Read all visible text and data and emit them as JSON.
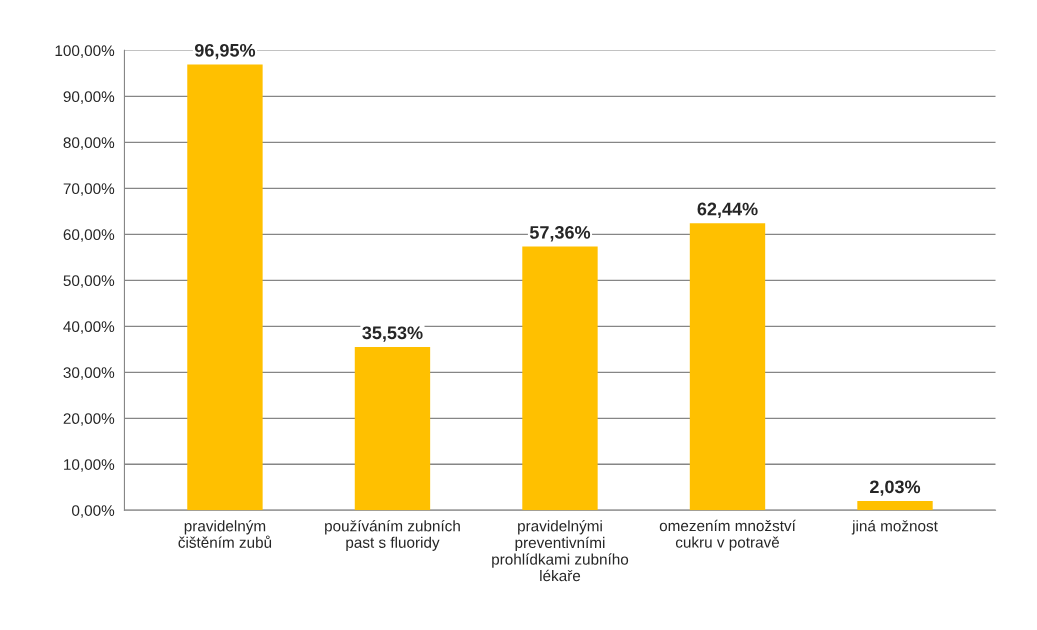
{
  "chart_data": {
    "type": "bar",
    "categories": [
      "pravidelným\nčištěním zubů",
      "používáním zubních\npast s fluoridy",
      "pravidelnými\npreventivními\nprohlídkami zubního\nlékaře",
      "omezením množství\ncukru v potravě",
      "jiná možnost"
    ],
    "values": [
      96.95,
      35.53,
      57.36,
      62.44,
      2.03
    ],
    "value_labels": [
      "96,95%",
      "35,53%",
      "57,36%",
      "62,44%",
      "2,03%"
    ],
    "color": "#ffc000",
    "ylim": [
      0,
      100
    ],
    "yticks": [
      {
        "value": 0,
        "label": "0,00%"
      },
      {
        "value": 10,
        "label": "10,00%"
      },
      {
        "value": 20,
        "label": "20,00%"
      },
      {
        "value": 30,
        "label": "30,00%"
      },
      {
        "value": 40,
        "label": "40,00%"
      },
      {
        "value": 50,
        "label": "50,00%"
      },
      {
        "value": 60,
        "label": "60,00%"
      },
      {
        "value": 70,
        "label": "70,00%"
      },
      {
        "value": 80,
        "label": "80,00%"
      },
      {
        "value": 90,
        "label": "90,00%"
      },
      {
        "value": 100,
        "label": "100,00%"
      }
    ],
    "grid": "y"
  }
}
